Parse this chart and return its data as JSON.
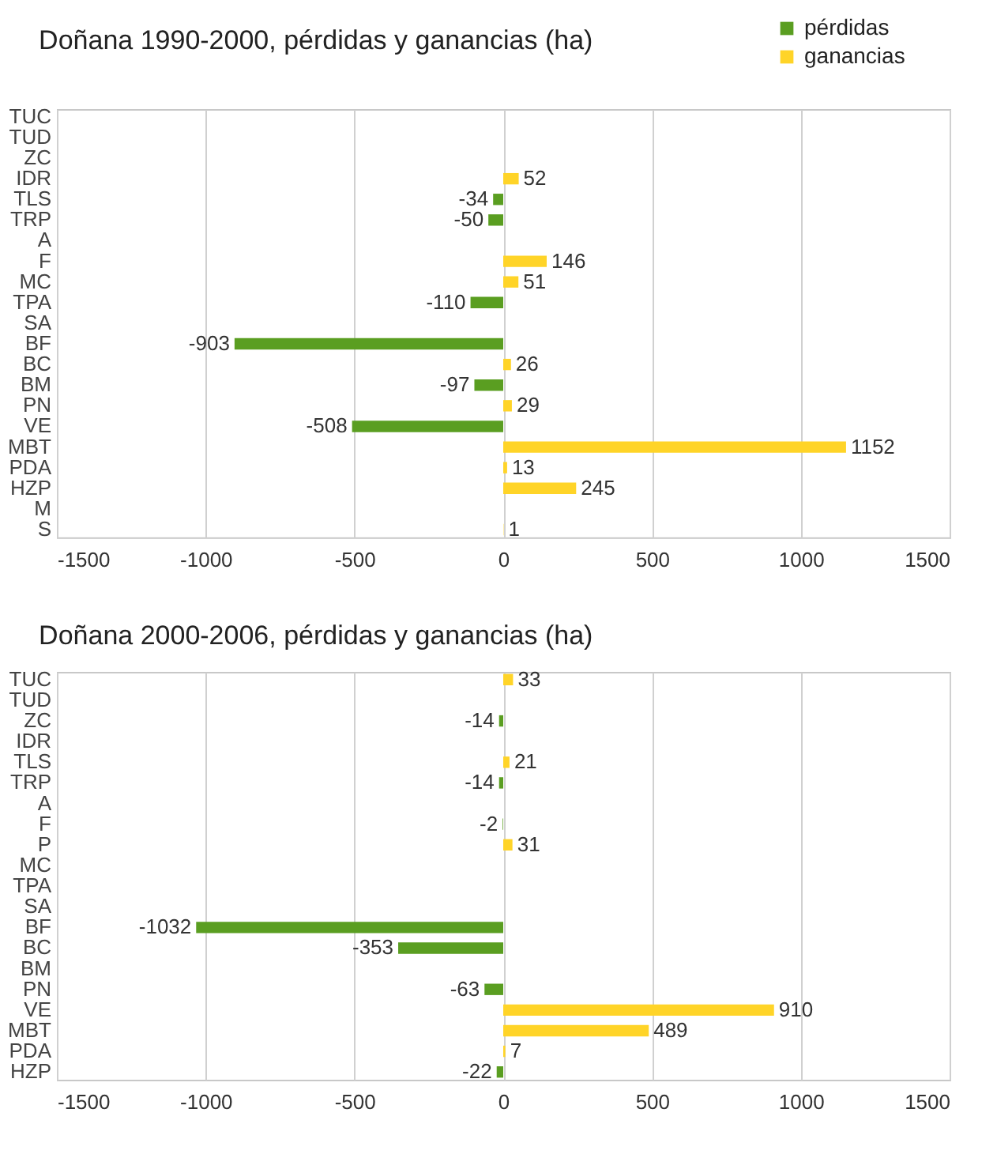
{
  "chart_data": [
    {
      "type": "bar",
      "orientation": "horizontal",
      "title": "Doñana 1990-2000, pérdidas y ganancias (ha)",
      "categories": [
        "TUC",
        "TUD",
        "ZC",
        "IDR",
        "TLS",
        "TRP",
        "A",
        "F",
        "MC",
        "TPA",
        "SA",
        "BF",
        "BC",
        "BM",
        "PN",
        "VE",
        "MBT",
        "PDA",
        "HZP",
        "M",
        "S"
      ],
      "series": [
        {
          "name": "pérdidas",
          "color": "#5a9e21",
          "values": [
            null,
            null,
            null,
            null,
            -34,
            -50,
            null,
            null,
            null,
            -110,
            null,
            -903,
            null,
            -97,
            null,
            -508,
            null,
            null,
            null,
            null,
            null
          ]
        },
        {
          "name": "ganancias",
          "color": "#ffd428",
          "values": [
            null,
            null,
            null,
            52,
            null,
            null,
            null,
            146,
            51,
            null,
            null,
            null,
            26,
            null,
            29,
            null,
            1152,
            13,
            245,
            null,
            1
          ]
        }
      ],
      "xlim": [
        -1500,
        1500
      ],
      "xticks": [
        -1500,
        -1000,
        -500,
        0,
        500,
        1000,
        1500
      ],
      "grid": "x",
      "legend": "top right",
      "data_labels": true
    },
    {
      "type": "bar",
      "orientation": "horizontal",
      "title": "Doñana 2000-2006, pérdidas y ganancias (ha)",
      "categories": [
        "TUC",
        "TUD",
        "ZC",
        "IDR",
        "TLS",
        "TRP",
        "A",
        "F",
        "P",
        "MC",
        "TPA",
        "SA",
        "BF",
        "BC",
        "BM",
        "PN",
        "VE",
        "MBT",
        "PDA",
        "HZP"
      ],
      "series": [
        {
          "color": "#5a9e21",
          "values": [
            null,
            null,
            -14,
            null,
            null,
            -14,
            null,
            -2,
            null,
            null,
            null,
            null,
            -1032,
            -353,
            null,
            -63,
            null,
            null,
            null,
            -22
          ]
        },
        {
          "color": "#ffd428",
          "values": [
            33,
            null,
            null,
            null,
            21,
            null,
            null,
            null,
            31,
            null,
            null,
            null,
            null,
            null,
            null,
            null,
            910,
            489,
            7,
            null
          ]
        }
      ],
      "xlim": [
        -1500,
        1500
      ],
      "xticks": [
        -1500,
        -1000,
        -500,
        0,
        500,
        1000,
        1500
      ],
      "grid": "x",
      "data_labels": true
    }
  ]
}
